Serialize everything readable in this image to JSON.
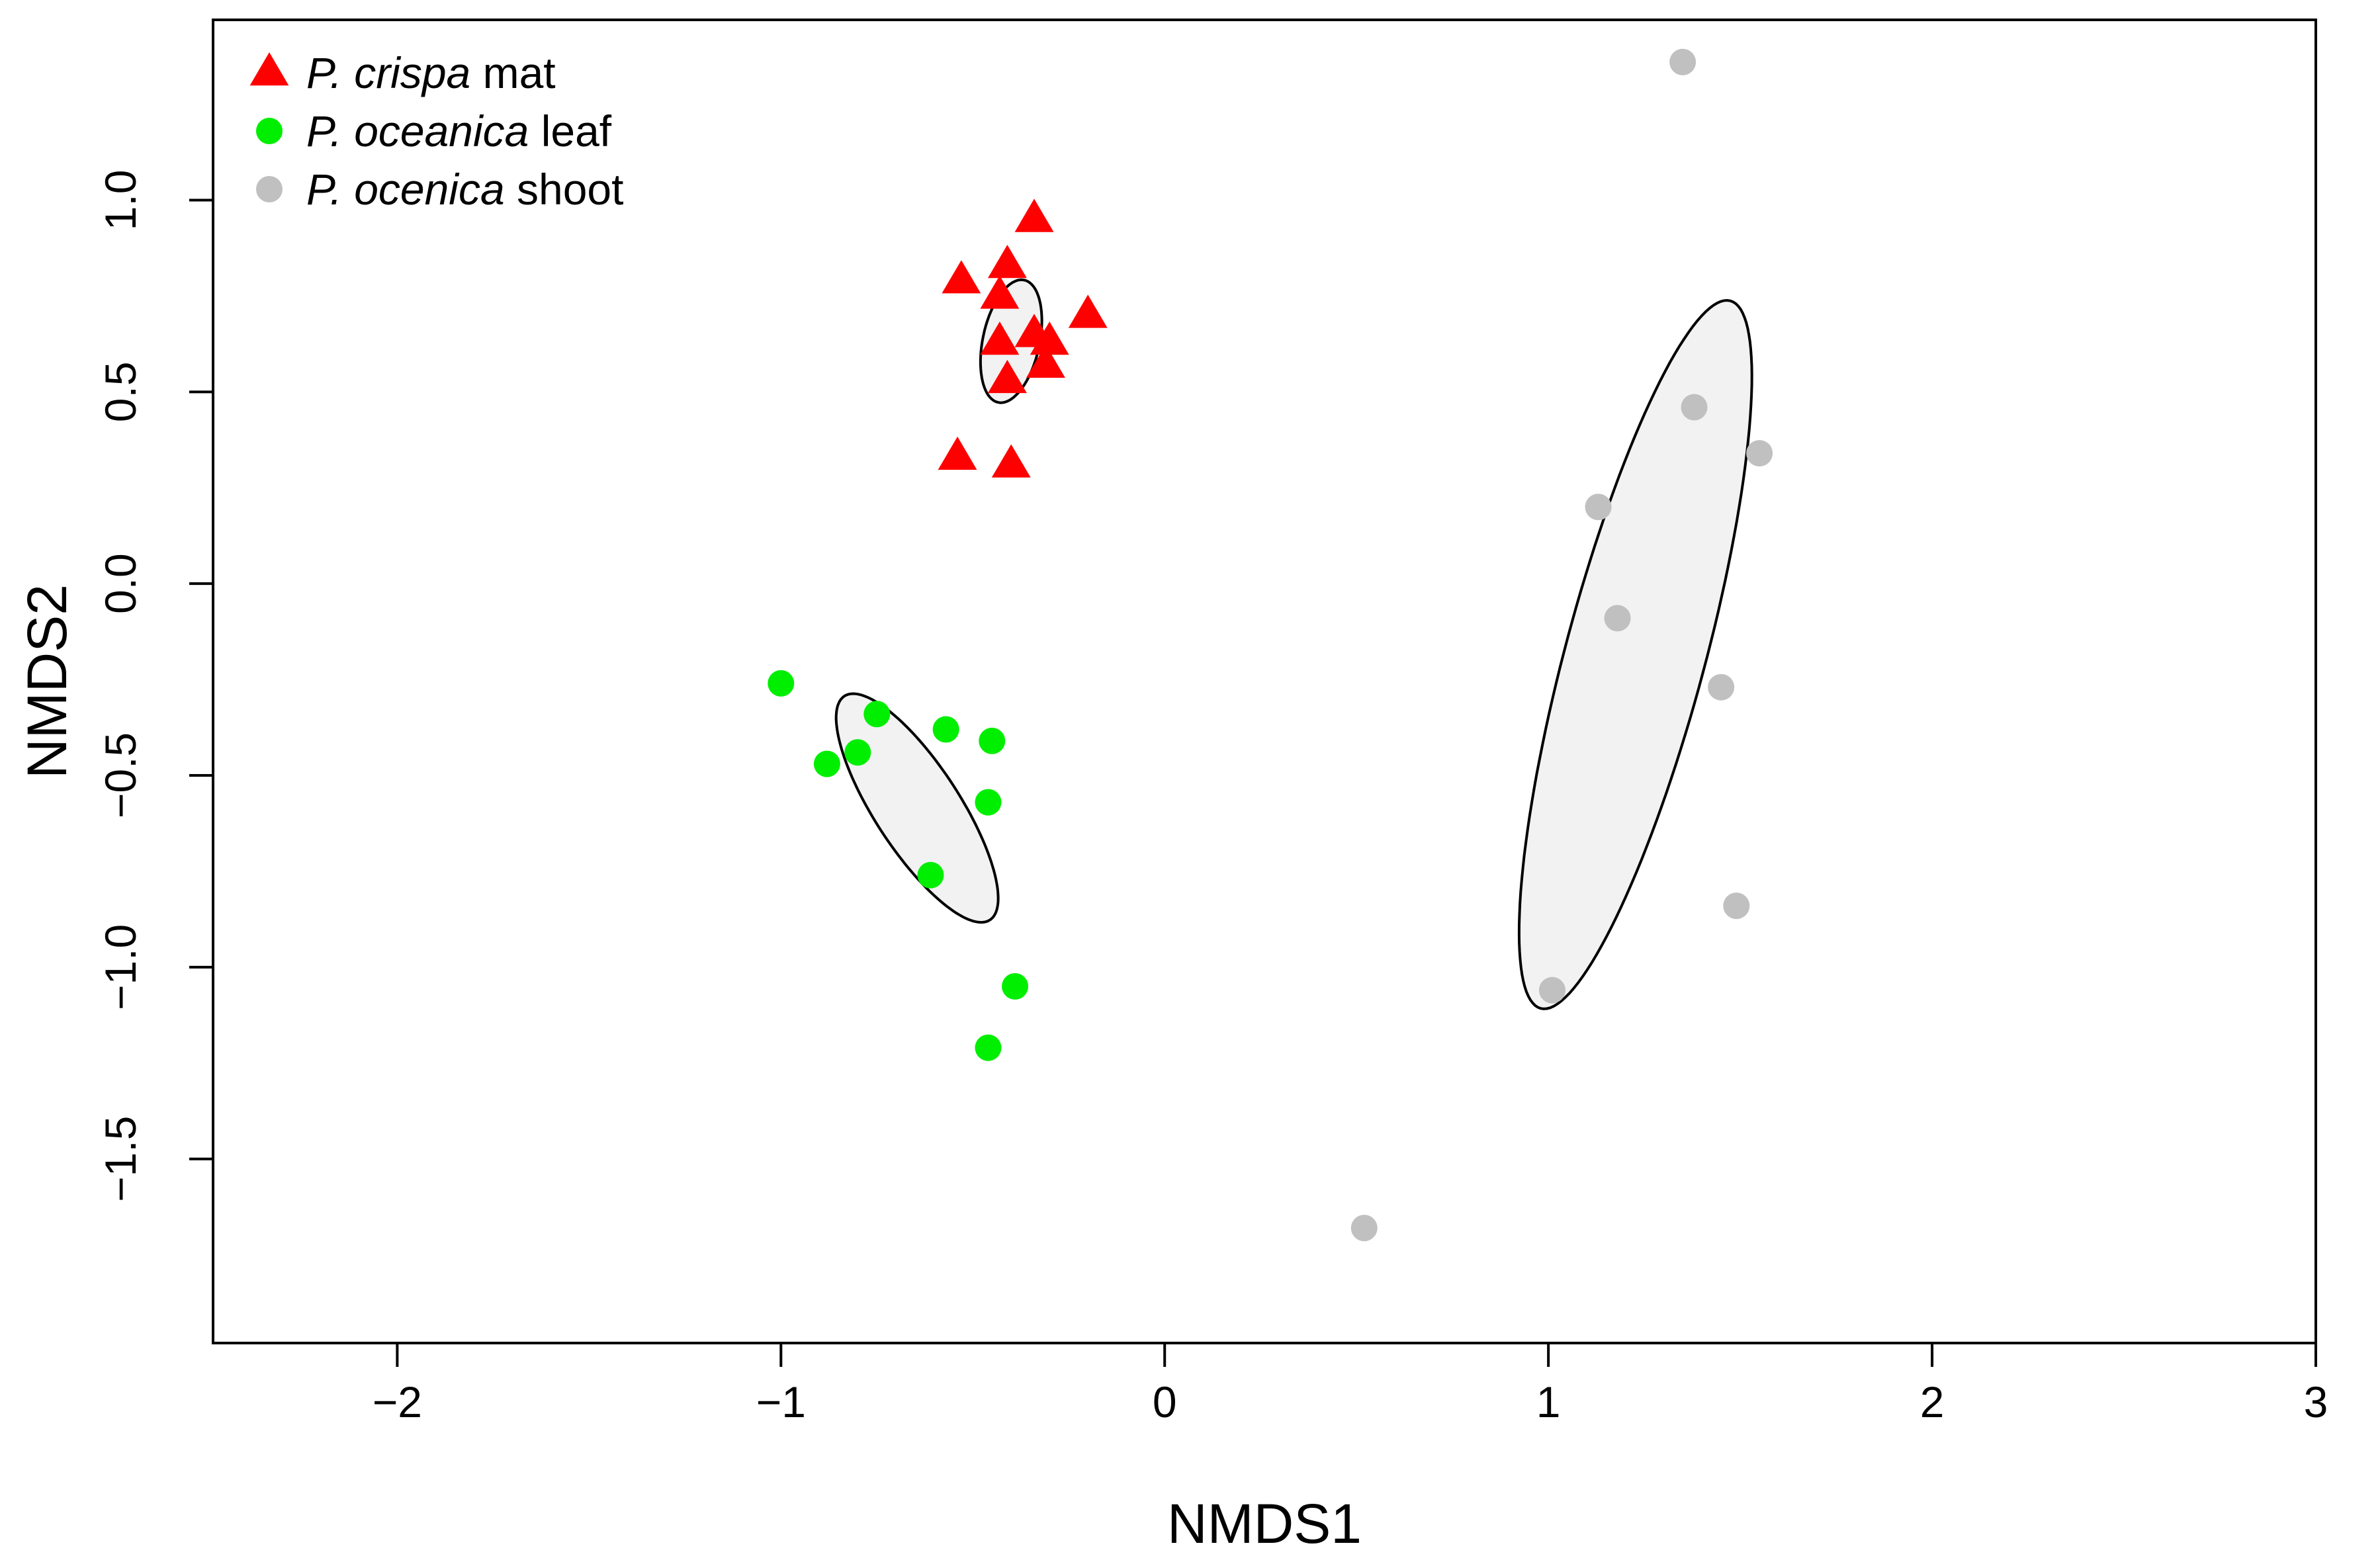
{
  "chart_data": {
    "type": "scatter",
    "title": "",
    "xlabel": "NMDS1",
    "ylabel": "NMDS2",
    "xlim": [
      -2.48,
      3.0
    ],
    "ylim": [
      -1.98,
      1.47
    ],
    "xticks": [
      -2,
      -1,
      0,
      1,
      2,
      3
    ],
    "xtick_labels": [
      "−2",
      "−1",
      "0",
      "1",
      "2",
      "3"
    ],
    "yticks": [
      -1.5,
      -1.0,
      -0.5,
      0.0,
      0.5,
      1.0
    ],
    "ytick_labels": [
      "−1.5",
      "−1.0",
      "−0.5",
      "0.0",
      "0.5",
      "1.0"
    ],
    "grid": false,
    "legend_position": "top-left",
    "series": [
      {
        "name_italic": "P. crispa",
        "name_suffix": " mat",
        "marker": "triangle",
        "color": "#ff0000",
        "points": [
          {
            "x": -0.34,
            "y": 0.95
          },
          {
            "x": -0.41,
            "y": 0.83
          },
          {
            "x": -0.53,
            "y": 0.79
          },
          {
            "x": -0.43,
            "y": 0.75
          },
          {
            "x": -0.2,
            "y": 0.7
          },
          {
            "x": -0.34,
            "y": 0.65
          },
          {
            "x": -0.3,
            "y": 0.63
          },
          {
            "x": -0.43,
            "y": 0.63
          },
          {
            "x": -0.31,
            "y": 0.57
          },
          {
            "x": -0.41,
            "y": 0.53
          },
          {
            "x": -0.54,
            "y": 0.33
          },
          {
            "x": -0.4,
            "y": 0.31
          }
        ],
        "ellipse": {
          "cx": -0.4,
          "cy": 0.632,
          "rx": 0.163,
          "ry": 0.074,
          "angle_deg": 78
        }
      },
      {
        "name_italic": "P. oceanica",
        "name_suffix": " leaf",
        "marker": "circle",
        "color": "#00ee00",
        "points": [
          {
            "x": -1.0,
            "y": -0.26
          },
          {
            "x": -0.75,
            "y": -0.34
          },
          {
            "x": -0.57,
            "y": -0.38
          },
          {
            "x": -0.45,
            "y": -0.41
          },
          {
            "x": -0.8,
            "y": -0.44
          },
          {
            "x": -0.88,
            "y": -0.47
          },
          {
            "x": -0.46,
            "y": -0.57
          },
          {
            "x": -0.61,
            "y": -0.76
          },
          {
            "x": -0.39,
            "y": -1.05
          },
          {
            "x": -0.46,
            "y": -1.21
          }
        ],
        "ellipse": {
          "cx": -0.645,
          "cy": -0.585,
          "rx": 0.348,
          "ry": 0.111,
          "angle_deg": -57
        }
      },
      {
        "name_italic": "P. ocenica",
        "name_suffix": " shoot",
        "marker": "circle",
        "color": "#c0c0c0",
        "points": [
          {
            "x": 1.35,
            "y": 1.36
          },
          {
            "x": 1.38,
            "y": 0.46
          },
          {
            "x": 1.55,
            "y": 0.34
          },
          {
            "x": 1.13,
            "y": 0.2
          },
          {
            "x": 1.18,
            "y": -0.09
          },
          {
            "x": 1.45,
            "y": -0.27
          },
          {
            "x": 1.49,
            "y": -0.84
          },
          {
            "x": 1.01,
            "y": -1.06
          },
          {
            "x": 0.52,
            "y": -1.68
          }
        ],
        "ellipse": {
          "cx": 1.227,
          "cy": -0.185,
          "rx": 0.955,
          "ry": 0.182,
          "angle_deg": 75
        }
      }
    ]
  }
}
